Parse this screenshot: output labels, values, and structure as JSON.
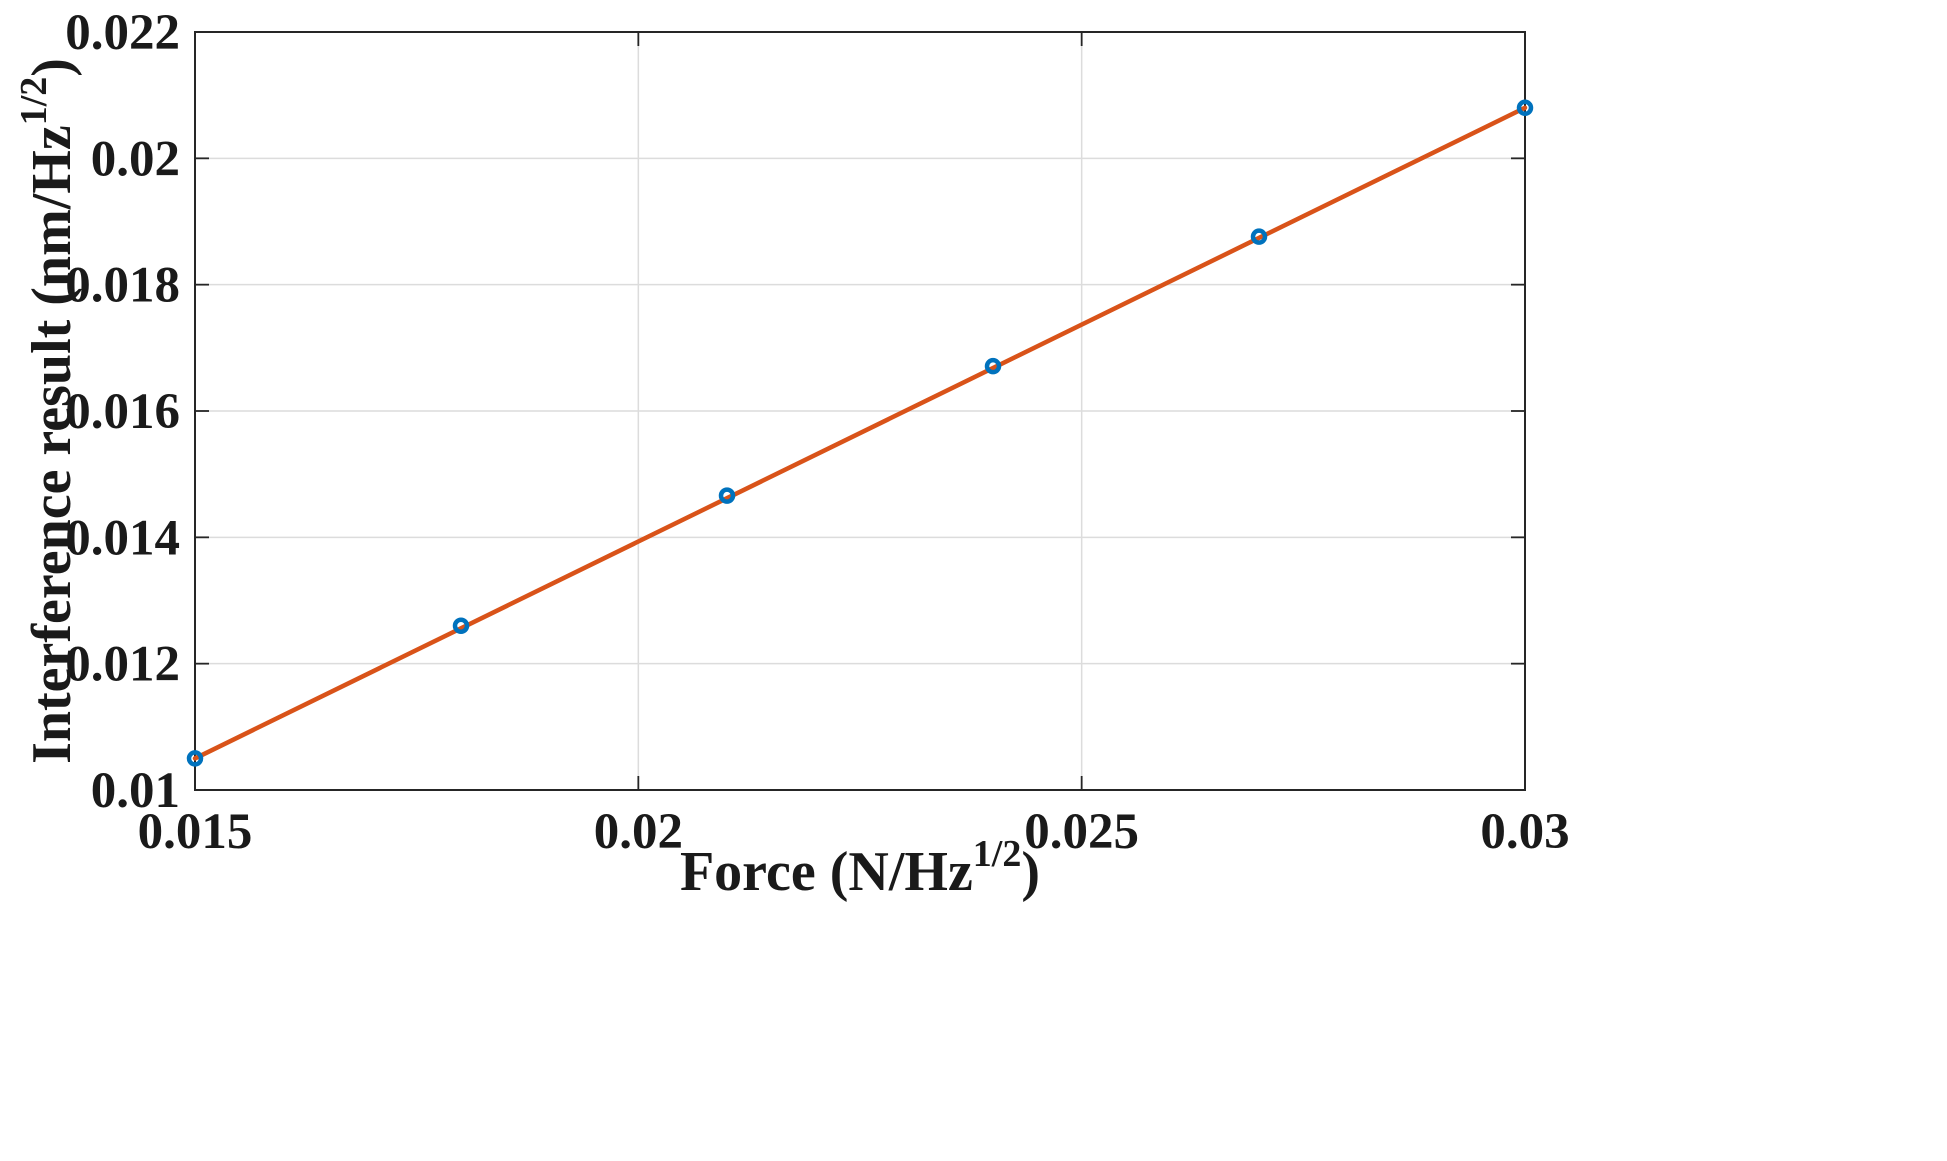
{
  "chart_data": {
    "type": "line",
    "xlabel": {
      "base": "Force (N/Hz",
      "sup": "1/2",
      "tail": ")"
    },
    "ylabel": {
      "base": "Interference result (nm/Hz",
      "sup": "1/2",
      "tail": ")"
    },
    "xlim": [
      0.015,
      0.03
    ],
    "ylim": [
      0.01,
      0.022
    ],
    "xticks": [
      0.015,
      0.02,
      0.025,
      0.03
    ],
    "xtick_labels": [
      "0.015",
      "0.02",
      "0.025",
      "0.03"
    ],
    "yticks": [
      0.01,
      0.012,
      0.014,
      0.016,
      0.018,
      0.02,
      0.022
    ],
    "ytick_labels": [
      "0.01",
      "0.012",
      "0.014",
      "0.016",
      "0.018",
      "0.02",
      "0.022"
    ],
    "grid": true,
    "series": [
      {
        "kind": "scatter",
        "color": "#0072BD",
        "marker": "circle",
        "x": [
          0.015,
          0.018,
          0.021,
          0.024,
          0.027,
          0.03
        ],
        "y": [
          0.0105,
          0.0126,
          0.01466,
          0.01671,
          0.01876,
          0.0208
        ]
      },
      {
        "kind": "line",
        "color": "#D95319",
        "x": [
          0.015,
          0.03
        ],
        "y": [
          0.0105,
          0.0208
        ]
      }
    ]
  }
}
